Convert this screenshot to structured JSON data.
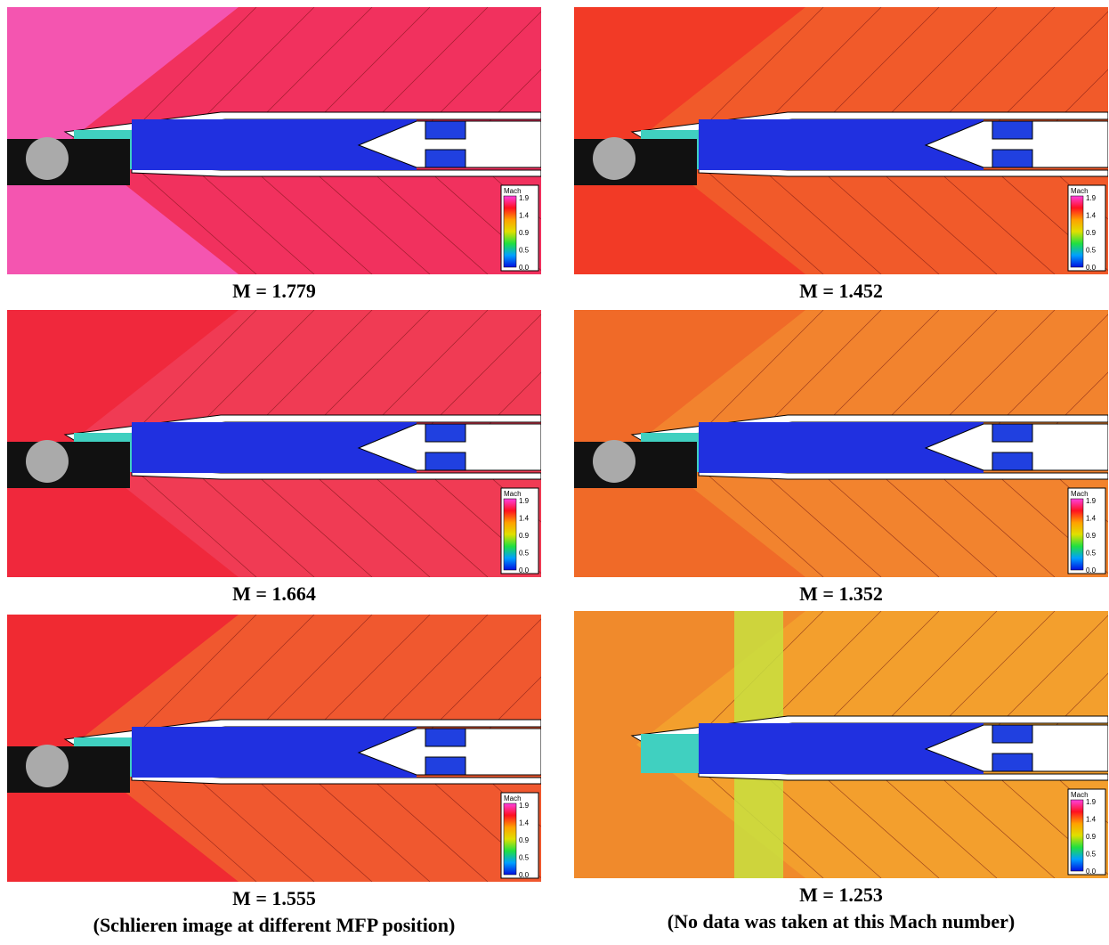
{
  "panels": [
    {
      "caption": "M = 1.779",
      "legend": {
        "title": "Mach",
        "ticks": [
          "1.9",
          "1.4",
          "0.9",
          "0.5",
          "0.0"
        ]
      }
    },
    {
      "caption": "M = 1.452",
      "legend": {
        "title": "Mach",
        "ticks": [
          "1.9",
          "1.4",
          "0.9",
          "0.5",
          "0.0"
        ]
      }
    },
    {
      "caption": "M = 1.664",
      "legend": {
        "title": "Mach",
        "ticks": [
          "1.9",
          "1.4",
          "0.9",
          "0.5",
          "0.0"
        ]
      }
    },
    {
      "caption": "M = 1.352",
      "legend": {
        "title": "Mach",
        "ticks": [
          "1.9",
          "1.4",
          "0.9",
          "0.5",
          "0.0"
        ]
      }
    },
    {
      "caption": "M = 1.555",
      "note": "(Schlieren image at different MFP position)",
      "legend": {
        "title": "Mach",
        "ticks": [
          "1.9",
          "1.4",
          "0.9",
          "0.5",
          "0.0"
        ]
      }
    },
    {
      "caption": "M = 1.253",
      "note": "(No data was taken at this Mach number)",
      "legend": {
        "title": "Mach",
        "ticks": [
          "1.9",
          "1.4",
          "0.9",
          "0.5",
          "0.0"
        ]
      }
    }
  ]
}
